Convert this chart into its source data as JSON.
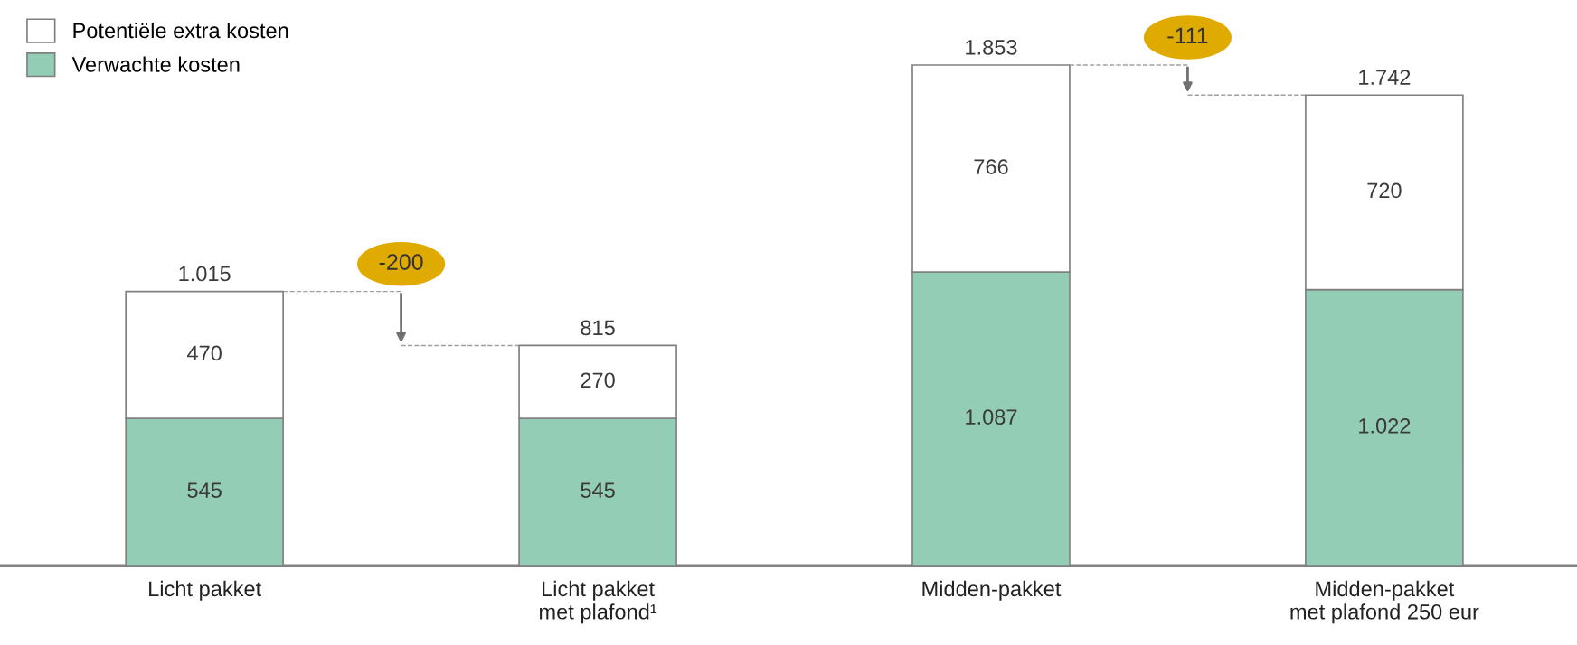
{
  "chart_data": {
    "type": "bar",
    "stacked": true,
    "data_labels": false,
    "legend": "top left",
    "categories": [
      "Licht pakket",
      "Licht pakket\nmet plafond¹",
      "Midden-pakket",
      "Midden-pakket\nmet plafond 250 eur"
    ],
    "series": [
      {
        "name": "Verwachte kosten",
        "color": "#93cdb5",
        "values": [
          545,
          545,
          1087,
          1022
        ],
        "value_labels": [
          "545",
          "545",
          "1.087",
          "1.022"
        ]
      },
      {
        "name": "Potentiële extra kosten",
        "color": "#ffffff",
        "values": [
          470,
          270,
          766,
          720
        ],
        "value_labels": [
          "470",
          "270",
          "766",
          "720"
        ]
      }
    ],
    "totals": [
      "1.015",
      "815",
      "1.853",
      "1.742"
    ],
    "annotations": [
      "-200",
      "-111"
    ]
  }
}
